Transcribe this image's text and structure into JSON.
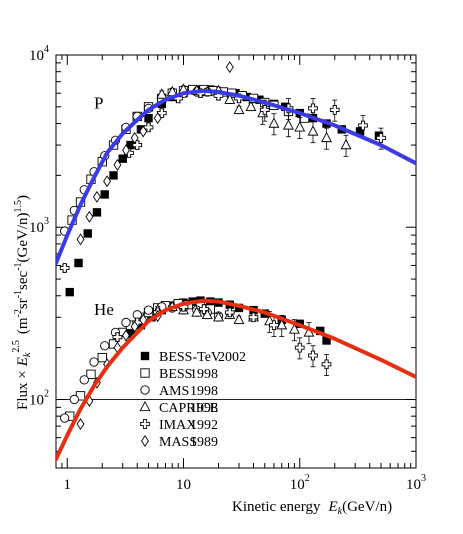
{
  "chart_data": {
    "type": "scatter",
    "title": "",
    "xlabel_prefix": "Kinetic energy",
    "xlabel_var": "E",
    "xlabel_sub": "k",
    "xlabel_unit": "(GeV/n)",
    "ylabel_prefix": "Flux ×",
    "ylabel_var": "E",
    "ylabel_sub": "k",
    "ylabel_exp": "2.5",
    "ylabel_unit_open": "(m",
    "ylabel_unit_e1": "-2",
    "ylabel_unit_sr": "sr",
    "ylabel_unit_e2": "-1",
    "ylabel_unit_sec": "sec",
    "ylabel_unit_e3": "-1",
    "ylabel_unit_gev": "(GeV/n)",
    "ylabel_unit_e4": "1.5",
    "ylabel_unit_close": ")",
    "x_scale": "log",
    "y_scale": "log",
    "xlim": [
      0.8,
      1000
    ],
    "ylim": [
      40,
      10000
    ],
    "x_ticks": [
      {
        "value": 1,
        "base": "1",
        "exp": ""
      },
      {
        "value": 10,
        "base": "10",
        "exp": ""
      },
      {
        "value": 100,
        "base": "10",
        "exp": "2"
      },
      {
        "value": 1000,
        "base": "10",
        "exp": "3"
      }
    ],
    "y_ticks": [
      {
        "value": 100,
        "base": "10",
        "exp": "2"
      },
      {
        "value": 1000,
        "base": "10",
        "exp": "3"
      },
      {
        "value": 10000,
        "base": "10",
        "exp": "4"
      }
    ],
    "reference_line_y": 100,
    "group_labels": [
      {
        "text": "P",
        "x": 1.7,
        "y": 4900
      },
      {
        "text": "He",
        "x": 1.7,
        "y": 310
      }
    ],
    "legend": {
      "position": "lower-left",
      "entries": [
        {
          "marker": "filled-square",
          "name": "BESS-TeV",
          "year": "2002"
        },
        {
          "marker": "open-square",
          "name": "BESS",
          "year": "1998"
        },
        {
          "marker": "open-circle",
          "name": "AMS",
          "year": "1998"
        },
        {
          "marker": "open-triangle",
          "name": "CAPRICE",
          "year": "1998"
        },
        {
          "marker": "open-cross",
          "name": "IMAX",
          "year": "1992"
        },
        {
          "marker": "open-diamond",
          "name": "MASS",
          "year": "1989"
        }
      ]
    },
    "curves": [
      {
        "color": "#3a3ae6",
        "points": [
          [
            0.8,
            620
          ],
          [
            1,
            900
          ],
          [
            1.3,
            1350
          ],
          [
            1.7,
            1950
          ],
          [
            2.2,
            2700
          ],
          [
            3,
            3500
          ],
          [
            4,
            4200
          ],
          [
            5,
            4800
          ],
          [
            7,
            5500
          ],
          [
            10,
            6000
          ],
          [
            15,
            6200
          ],
          [
            20,
            6100
          ],
          [
            30,
            5800
          ],
          [
            50,
            5300
          ],
          [
            100,
            4600
          ],
          [
            200,
            3900
          ],
          [
            500,
            3000
          ],
          [
            1000,
            2350
          ]
        ]
      },
      {
        "color": "#e62e10",
        "points": [
          [
            0.8,
            45
          ],
          [
            1,
            62
          ],
          [
            1.3,
            88
          ],
          [
            1.7,
            120
          ],
          [
            2.2,
            155
          ],
          [
            3,
            200
          ],
          [
            4,
            245
          ],
          [
            5,
            285
          ],
          [
            7,
            330
          ],
          [
            10,
            360
          ],
          [
            15,
            375
          ],
          [
            20,
            370
          ],
          [
            30,
            350
          ],
          [
            50,
            320
          ],
          [
            100,
            270
          ],
          [
            200,
            225
          ],
          [
            500,
            170
          ],
          [
            1000,
            135
          ]
        ]
      }
    ],
    "series": [
      {
        "marker": "filled-square",
        "points": [
          [
            1.05,
            420
          ],
          [
            1.25,
            620
          ],
          [
            1.5,
            920
          ],
          [
            1.8,
            1220
          ],
          [
            2.1,
            1550
          ],
          [
            2.5,
            2000
          ],
          [
            3,
            2500
          ],
          [
            3.5,
            3000
          ],
          [
            4.3,
            3700
          ],
          [
            5,
            4300
          ],
          [
            6.5,
            5200
          ],
          [
            8,
            5700
          ],
          [
            10,
            6000
          ],
          [
            13,
            6300
          ],
          [
            17,
            6300
          ],
          [
            22,
            6100
          ],
          [
            28,
            6000
          ],
          [
            35,
            5700
          ],
          [
            45,
            5500
          ],
          [
            60,
            5200
          ],
          [
            75,
            5000
          ],
          [
            100,
            4600
          ],
          [
            130,
            4300
          ],
          [
            170,
            4000
          ],
          [
            230,
            3700
          ],
          [
            330,
            3600
          ],
          [
            480,
            3400
          ],
          [
            3.5,
            240
          ],
          [
            4.3,
            270
          ],
          [
            5.3,
            300
          ],
          [
            6.5,
            330
          ],
          [
            8,
            350
          ],
          [
            10,
            365
          ],
          [
            12,
            370
          ],
          [
            14,
            375
          ],
          [
            17,
            370
          ],
          [
            20,
            365
          ],
          [
            25,
            355
          ],
          [
            30,
            340
          ],
          [
            40,
            330
          ],
          [
            50,
            315
          ],
          [
            70,
            290
          ],
          [
            100,
            275
          ],
          [
            150,
            250
          ],
          [
            170,
            220
          ]
        ]
      },
      {
        "marker": "open-square",
        "points": [
          [
            1.1,
            1100
          ],
          [
            1.3,
            1400
          ],
          [
            1.6,
            1900
          ],
          [
            2,
            2400
          ],
          [
            2.5,
            3000
          ],
          [
            3.2,
            3700
          ],
          [
            4,
            4400
          ],
          [
            5,
            5000
          ],
          [
            6.5,
            5600
          ],
          [
            8,
            6000
          ],
          [
            10,
            6200
          ],
          [
            12,
            6300
          ],
          [
            15,
            6300
          ],
          [
            18,
            6200
          ],
          [
            22,
            6100
          ],
          [
            26,
            6000
          ],
          [
            32,
            5800
          ],
          [
            40,
            5600
          ],
          [
            50,
            5300
          ],
          [
            60,
            5100
          ],
          [
            80,
            4700
          ],
          [
            110,
            4300
          ],
          [
            1.05,
            80
          ],
          [
            1.3,
            105
          ],
          [
            1.6,
            140
          ],
          [
            2,
            175
          ],
          [
            2.5,
            210
          ],
          [
            3,
            245
          ],
          [
            3.5,
            270
          ],
          [
            4.2,
            300
          ],
          [
            5,
            320
          ],
          [
            6,
            340
          ],
          [
            7,
            350
          ],
          [
            9,
            360
          ],
          [
            11,
            355
          ],
          [
            14,
            345
          ],
          [
            17,
            335
          ]
        ]
      },
      {
        "marker": "open-circle",
        "points": [
          [
            0.95,
            950
          ],
          [
            1.15,
            1250
          ],
          [
            1.4,
            1650
          ],
          [
            1.7,
            2100
          ],
          [
            2.1,
            2600
          ],
          [
            2.6,
            3200
          ],
          [
            3.2,
            3800
          ],
          [
            4,
            4400
          ],
          [
            5,
            4900
          ],
          [
            6.5,
            5500
          ],
          [
            8,
            5800
          ],
          [
            10,
            6000
          ],
          [
            13,
            6100
          ],
          [
            16,
            6100
          ],
          [
            20,
            6000
          ],
          [
            0.95,
            78
          ],
          [
            1.15,
            100
          ],
          [
            1.4,
            130
          ],
          [
            1.7,
            165
          ],
          [
            2.1,
            205
          ],
          [
            2.6,
            245
          ],
          [
            3.2,
            280
          ],
          [
            4,
            310
          ],
          [
            5,
            330
          ],
          [
            6.5,
            345
          ],
          [
            8,
            340
          ],
          [
            10,
            340
          ],
          [
            13,
            330
          ],
          [
            16,
            320
          ],
          [
            20,
            305
          ]
        ]
      },
      {
        "marker": "open-triangle",
        "points": [
          [
            6.5,
            5900
          ],
          [
            8,
            6100
          ],
          [
            10,
            6300
          ],
          [
            13,
            6200
          ],
          [
            16,
            6100
          ],
          [
            20,
            6200
          ],
          [
            25,
            5500
          ],
          [
            30,
            4800
          ],
          [
            38,
            5000
          ],
          [
            48,
            4600
          ],
          [
            60,
            4000
          ],
          [
            80,
            3900
          ],
          [
            100,
            3800
          ],
          [
            130,
            3600
          ],
          [
            170,
            3300
          ],
          [
            250,
            3000
          ],
          [
            6,
            330
          ],
          [
            8,
            345
          ],
          [
            10,
            330
          ],
          [
            13,
            320
          ],
          [
            16,
            310
          ],
          [
            20,
            300
          ],
          [
            25,
            310
          ],
          [
            30,
            290
          ],
          [
            40,
            300
          ],
          [
            55,
            285
          ],
          [
            70,
            270
          ],
          [
            90,
            255
          ],
          [
            120,
            245
          ]
        ]
      },
      {
        "marker": "open-cross",
        "points": [
          [
            0.95,
            580
          ],
          [
            3.4,
            2700
          ],
          [
            4,
            3000
          ],
          [
            5,
            3800
          ],
          [
            6.5,
            4600
          ],
          [
            9,
            5600
          ],
          [
            14,
            6000
          ],
          [
            20,
            5800
          ],
          [
            30,
            5600
          ],
          [
            50,
            4800
          ],
          [
            80,
            4900
          ],
          [
            130,
            4900
          ],
          [
            200,
            4800
          ],
          [
            350,
            3900
          ],
          [
            500,
            3300
          ],
          [
            2.7,
            230
          ],
          [
            4,
            280
          ],
          [
            6,
            320
          ],
          [
            10,
            345
          ],
          [
            15,
            335
          ],
          [
            25,
            320
          ],
          [
            40,
            300
          ],
          [
            60,
            270
          ],
          [
            100,
            200
          ],
          [
            130,
            180
          ],
          [
            170,
            160
          ]
        ]
      },
      {
        "marker": "open-diamond",
        "points": [
          [
            1.3,
            850
          ],
          [
            1.55,
            1150
          ],
          [
            1.8,
            1500
          ],
          [
            2.2,
            1850
          ],
          [
            2.7,
            2300
          ],
          [
            3.2,
            2800
          ],
          [
            3.8,
            3300
          ],
          [
            4.5,
            3600
          ],
          [
            6,
            4300
          ],
          [
            25,
            8500
          ],
          [
            1.3,
            72
          ],
          [
            1.55,
            98
          ],
          [
            1.8,
            125
          ],
          [
            2.2,
            160
          ],
          [
            2.7,
            200
          ],
          [
            3.2,
            235
          ],
          [
            3.8,
            265
          ],
          [
            4.5,
            290
          ],
          [
            6,
            305
          ]
        ]
      }
    ]
  }
}
